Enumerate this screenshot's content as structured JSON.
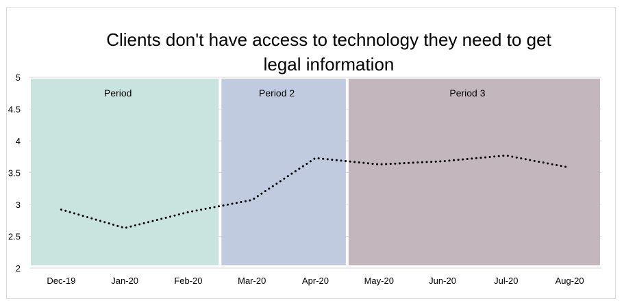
{
  "chart_data": {
    "type": "line",
    "title": "Clients don't have access to technology they need to get\nlegal information",
    "categories": [
      "Dec-19",
      "Jan-20",
      "Feb-20",
      "Mar-20",
      "Apr-20",
      "May-20",
      "Jun-20",
      "Jul-20",
      "Aug-20"
    ],
    "series": [
      {
        "values": [
          2.92,
          2.63,
          2.88,
          3.07,
          3.73,
          3.63,
          3.68,
          3.77,
          3.58
        ],
        "style": "dotted",
        "color": "#000000"
      }
    ],
    "ylim": [
      2,
      5
    ],
    "yticks": [
      "2",
      "2.5",
      "3",
      "3.5",
      "4",
      "4.5",
      "5"
    ],
    "grid": true,
    "periods": [
      {
        "label": "Period",
        "start": 0,
        "end": 2,
        "color": "#c9e4de"
      },
      {
        "label": "Period 2",
        "start": 3,
        "end": 4,
        "color": "#c0cbe0"
      },
      {
        "label": "Period 3",
        "start": 5,
        "end": 8,
        "color": "#c4b6bd"
      }
    ]
  }
}
